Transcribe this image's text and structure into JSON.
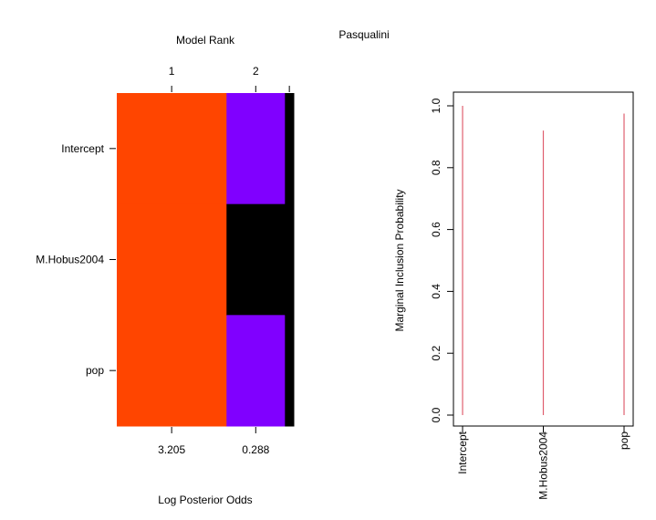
{
  "title": "Pasqualini",
  "colors": {
    "in_positive": "#ff4500",
    "in_negative": "#8000ff",
    "out": "#000000",
    "bar": "#e06070",
    "frame": "#000000"
  },
  "chart_data": [
    {
      "type": "heatmap",
      "title": "Model Rank",
      "xlabel": "Log Posterior Odds",
      "ylabel": "",
      "variables": [
        "Intercept",
        "M.Hobus2004",
        "pop"
      ],
      "models": [
        {
          "rank": 1,
          "width": 0.62,
          "cells": [
            "in_positive",
            "in_positive",
            "in_positive"
          ]
        },
        {
          "rank": 2,
          "width": 0.33,
          "cells": [
            "in_negative",
            "out",
            "in_negative"
          ]
        },
        {
          "rank": 3,
          "width": 0.05,
          "cells": [
            "out",
            "out",
            "out"
          ]
        }
      ],
      "top_ticks": [
        {
          "label": "1",
          "model": 0
        },
        {
          "label": "2",
          "model": 1
        },
        {
          "label": "",
          "model": 2
        }
      ],
      "bottom_ticks": [
        {
          "label": "3.205",
          "model": 0
        },
        {
          "label": "0.288",
          "model": 1
        }
      ]
    },
    {
      "type": "bar",
      "title": "",
      "xlabel": "",
      "ylabel": "Marginal Inclusion Probability",
      "categories": [
        "Intercept",
        "M.Hobus2004",
        "pop"
      ],
      "values": [
        1.0,
        0.92,
        0.975
      ],
      "ylim": [
        0,
        1
      ],
      "yticks": [
        "0.0",
        "0.2",
        "0.4",
        "0.6",
        "0.8",
        "1.0"
      ],
      "grid": false
    }
  ]
}
